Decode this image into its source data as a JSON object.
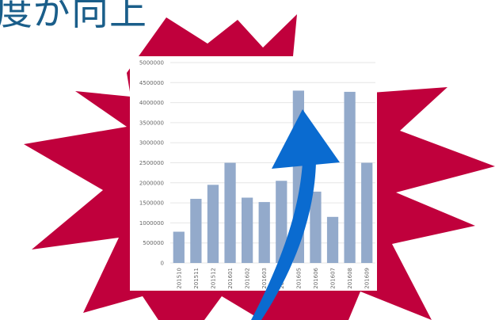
{
  "headline": {
    "text": "度が向上",
    "color": "#1a5e8a"
  },
  "colors": {
    "burst": "#c0003c",
    "bar": "#93aacb",
    "arrow": "#0a6bd0",
    "grid": "#e6e6e6",
    "axis_text": "#666666"
  },
  "chart_data": {
    "type": "bar",
    "categories": [
      "201510",
      "201511",
      "201512",
      "201601",
      "201602",
      "201603",
      "201604",
      "201605",
      "201606",
      "201607",
      "201608",
      "201609"
    ],
    "values": [
      780000,
      1600000,
      1950000,
      2500000,
      1630000,
      1520000,
      2050000,
      4300000,
      1780000,
      1150000,
      4270000,
      2500000
    ],
    "y_ticks": [
      "0",
      "500000",
      "1000000",
      "1500000",
      "2000000",
      "2500000",
      "3000000",
      "3500000",
      "4000000",
      "4500000",
      "5000000"
    ],
    "ylim": [
      0,
      5000000
    ],
    "grid": true,
    "annotation": "upward-arrow"
  }
}
